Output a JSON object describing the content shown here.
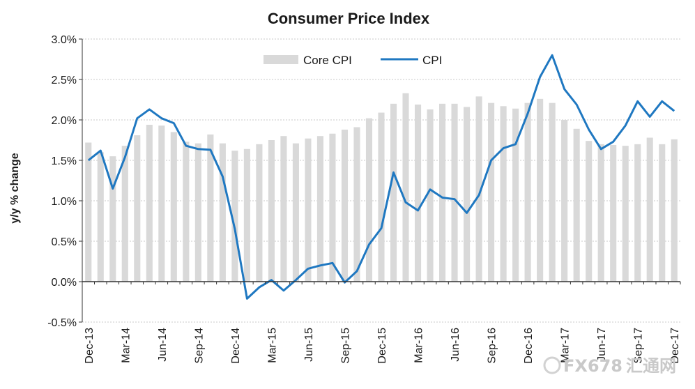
{
  "chart_data": {
    "type": "bar",
    "title": "Consumer  Price Index",
    "xlabel": "",
    "ylabel": "y/y % change",
    "ylim": [
      -0.5,
      3.0
    ],
    "yticks": [
      "3.0%",
      "2.5%",
      "2.0%",
      "1.5%",
      "1.0%",
      "0.5%",
      "0.0%",
      "-0.5%"
    ],
    "grid": true,
    "legend_position": "top-center",
    "categories": [
      "Dec-13",
      "Jan-14",
      "Feb-14",
      "Mar-14",
      "Apr-14",
      "May-14",
      "Jun-14",
      "Jul-14",
      "Aug-14",
      "Sep-14",
      "Oct-14",
      "Nov-14",
      "Dec-14",
      "Jan-15",
      "Feb-15",
      "Mar-15",
      "Apr-15",
      "May-15",
      "Jun-15",
      "Jul-15",
      "Aug-15",
      "Sep-15",
      "Oct-15",
      "Nov-15",
      "Dec-15",
      "Jan-16",
      "Feb-16",
      "Mar-16",
      "Apr-16",
      "May-16",
      "Jun-16",
      "Jul-16",
      "Aug-16",
      "Sep-16",
      "Oct-16",
      "Nov-16",
      "Dec-16",
      "Jan-17",
      "Feb-17",
      "Mar-17",
      "Apr-17",
      "May-17",
      "Jun-17",
      "Jul-17",
      "Aug-17",
      "Sep-17",
      "Oct-17",
      "Nov-17",
      "Dec-17"
    ],
    "xtick_labels": [
      "Dec-13",
      "Mar-14",
      "Jun-14",
      "Sep-14",
      "Dec-14",
      "Mar-15",
      "Jun-15",
      "Sep-15",
      "Dec-15",
      "Mar-16",
      "Jun-16",
      "Sep-16",
      "Dec-16",
      "Mar-17",
      "Jun-17",
      "Sep-17",
      "Dec-17"
    ],
    "series": [
      {
        "name": "Core CPI",
        "type": "bar",
        "color": "#d9d9d9",
        "values": [
          1.72,
          1.6,
          1.55,
          1.68,
          1.81,
          1.94,
          1.93,
          1.85,
          1.73,
          1.71,
          1.82,
          1.71,
          1.62,
          1.64,
          1.7,
          1.75,
          1.8,
          1.71,
          1.77,
          1.8,
          1.83,
          1.88,
          1.91,
          2.02,
          2.09,
          2.2,
          2.33,
          2.19,
          2.13,
          2.2,
          2.2,
          2.16,
          2.29,
          2.21,
          2.17,
          2.14,
          2.21,
          2.26,
          2.21,
          2.0,
          1.89,
          1.74,
          1.7,
          1.69,
          1.68,
          1.7,
          1.78,
          1.7,
          1.76
        ]
      },
      {
        "name": "CPI",
        "type": "line",
        "color": "#1f78c1",
        "values": [
          1.5,
          1.62,
          1.15,
          1.54,
          2.02,
          2.13,
          2.02,
          1.96,
          1.68,
          1.64,
          1.63,
          1.3,
          0.65,
          -0.21,
          -0.07,
          0.02,
          -0.11,
          0.02,
          0.16,
          0.2,
          0.23,
          -0.01,
          0.13,
          0.46,
          0.66,
          1.35,
          0.98,
          0.88,
          1.14,
          1.04,
          1.02,
          0.85,
          1.07,
          1.5,
          1.65,
          1.7,
          2.08,
          2.53,
          2.8,
          2.38,
          2.19,
          1.88,
          1.64,
          1.73,
          1.93,
          2.23,
          2.04,
          2.23,
          2.11
        ]
      }
    ]
  },
  "watermark": {
    "brand": "FX678",
    "suffix": "汇通网"
  }
}
